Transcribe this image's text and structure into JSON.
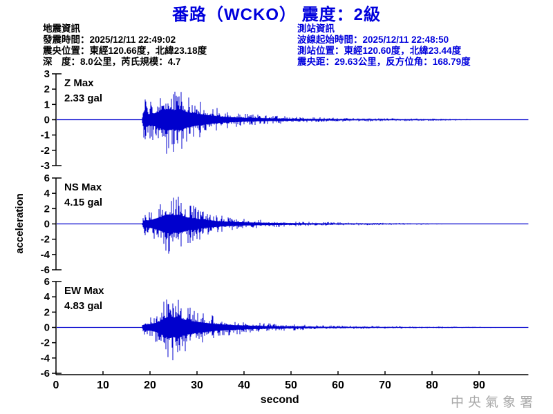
{
  "title": "番路（WCKO） 震度：2級",
  "earthquake_info": {
    "heading": "地震資訊",
    "lines": [
      "發震時間：2025/12/11 22:49:02",
      "震央位置：東經120.66度，北緯23.18度",
      "深　度：8.0公里，芮氏規模：4.7"
    ]
  },
  "station_info": {
    "heading": "測站資訊",
    "lines": [
      "波線起始時間：2025/12/11 22:48:50",
      "測站位置：東經120.60度，北緯23.44度",
      "震央距：29.63公里，反方位角：168.79度"
    ]
  },
  "watermark": "中央氣象署",
  "colors": {
    "title_blue": "#0000dd",
    "trace_blue": "#0000cd",
    "label_red": "#ee0000",
    "watermark_gray": "#aaaaaa",
    "axis_black": "#000000"
  },
  "chart_data": {
    "type": "line",
    "title": "番路（WCKO） 震度：2級",
    "xlabel": "second",
    "ylabel": "acceleration",
    "x_ticks": [
      0,
      10,
      20,
      30,
      40,
      50,
      60,
      70,
      80,
      90
    ],
    "x_range": [
      0,
      100.5
    ],
    "grid": false,
    "legend": "none",
    "trace_color": "#0000cd",
    "traces": [
      {
        "name": "Z",
        "label": "Z Max",
        "max_label": "2.33 gal",
        "max_gal": 2.33,
        "unit": "gal",
        "ylim": [
          -3,
          3
        ],
        "y_ticks": [
          3,
          2,
          1,
          0,
          -1,
          -2,
          -3
        ],
        "onset_second": 18.5,
        "peak_second": 24,
        "envelope": [
          [
            0,
            0
          ],
          [
            18.3,
            0
          ],
          [
            18.6,
            1.8
          ],
          [
            19.5,
            1.2
          ],
          [
            21,
            1.4
          ],
          [
            22.5,
            2.0
          ],
          [
            23.5,
            2.33
          ],
          [
            25,
            2.1
          ],
          [
            26.5,
            2.33
          ],
          [
            28,
            1.6
          ],
          [
            30,
            1.25
          ],
          [
            33,
            0.9
          ],
          [
            36,
            0.6
          ],
          [
            40,
            0.42
          ],
          [
            45,
            0.3
          ],
          [
            50,
            0.22
          ],
          [
            55,
            0.17
          ],
          [
            60,
            0.14
          ],
          [
            65,
            0.12
          ],
          [
            70,
            0.1
          ],
          [
            75,
            0.09
          ],
          [
            80,
            0.08
          ],
          [
            86,
            0.06
          ],
          [
            88,
            0.03
          ],
          [
            90,
            0
          ],
          [
            100.5,
            0
          ]
        ]
      },
      {
        "name": "NS",
        "label": "NS Max",
        "max_label": "4.15 gal",
        "max_gal": 4.15,
        "unit": "gal",
        "ylim": [
          -6,
          6
        ],
        "y_ticks": [
          6,
          4,
          2,
          0,
          -2,
          -4,
          -6
        ],
        "onset_second": 18.5,
        "peak_second": 24,
        "envelope": [
          [
            0,
            0
          ],
          [
            18.3,
            0
          ],
          [
            18.6,
            1.5
          ],
          [
            20,
            1.6
          ],
          [
            21,
            2.2
          ],
          [
            22,
            2.8
          ],
          [
            23,
            3.6
          ],
          [
            24,
            4.15
          ],
          [
            25,
            3.8
          ],
          [
            26,
            4.0
          ],
          [
            27,
            3.4
          ],
          [
            28,
            2.8
          ],
          [
            30,
            2.2
          ],
          [
            32,
            1.7
          ],
          [
            34,
            1.3
          ],
          [
            36,
            1.0
          ],
          [
            38,
            0.85
          ],
          [
            40,
            0.7
          ],
          [
            43,
            0.55
          ],
          [
            46,
            0.45
          ],
          [
            50,
            0.35
          ],
          [
            55,
            0.28
          ],
          [
            60,
            0.22
          ],
          [
            65,
            0.18
          ],
          [
            70,
            0.15
          ],
          [
            74,
            0.12
          ],
          [
            78,
            0.1
          ],
          [
            82,
            0.06
          ],
          [
            84,
            0
          ],
          [
            100.5,
            0
          ]
        ]
      },
      {
        "name": "EW",
        "label": "EW Max",
        "max_label": "4.83 gal",
        "max_gal": 4.83,
        "unit": "gal",
        "ylim": [
          -6,
          6
        ],
        "y_ticks": [
          6,
          4,
          2,
          0,
          -2,
          -4,
          -6
        ],
        "onset_second": 18.5,
        "peak_second": 24.5,
        "envelope": [
          [
            0,
            0
          ],
          [
            18.3,
            0
          ],
          [
            18.6,
            1.2
          ],
          [
            20,
            1.4
          ],
          [
            21,
            1.8
          ],
          [
            22,
            2.6
          ],
          [
            23,
            3.8
          ],
          [
            24,
            4.83
          ],
          [
            25,
            4.2
          ],
          [
            26,
            4.83
          ],
          [
            27,
            3.6
          ],
          [
            28,
            3.0
          ],
          [
            30,
            2.4
          ],
          [
            32,
            1.9
          ],
          [
            34,
            1.5
          ],
          [
            36,
            1.2
          ],
          [
            38,
            1.0
          ],
          [
            40,
            0.85
          ],
          [
            43,
            0.65
          ],
          [
            46,
            0.5
          ],
          [
            50,
            0.4
          ],
          [
            55,
            0.3
          ],
          [
            60,
            0.25
          ],
          [
            65,
            0.2
          ],
          [
            70,
            0.17
          ],
          [
            75,
            0.14
          ],
          [
            80,
            0.12
          ],
          [
            85,
            0.1
          ],
          [
            90,
            0.08
          ],
          [
            94,
            0.05
          ],
          [
            95,
            0
          ],
          [
            100.5,
            0
          ]
        ]
      }
    ]
  }
}
